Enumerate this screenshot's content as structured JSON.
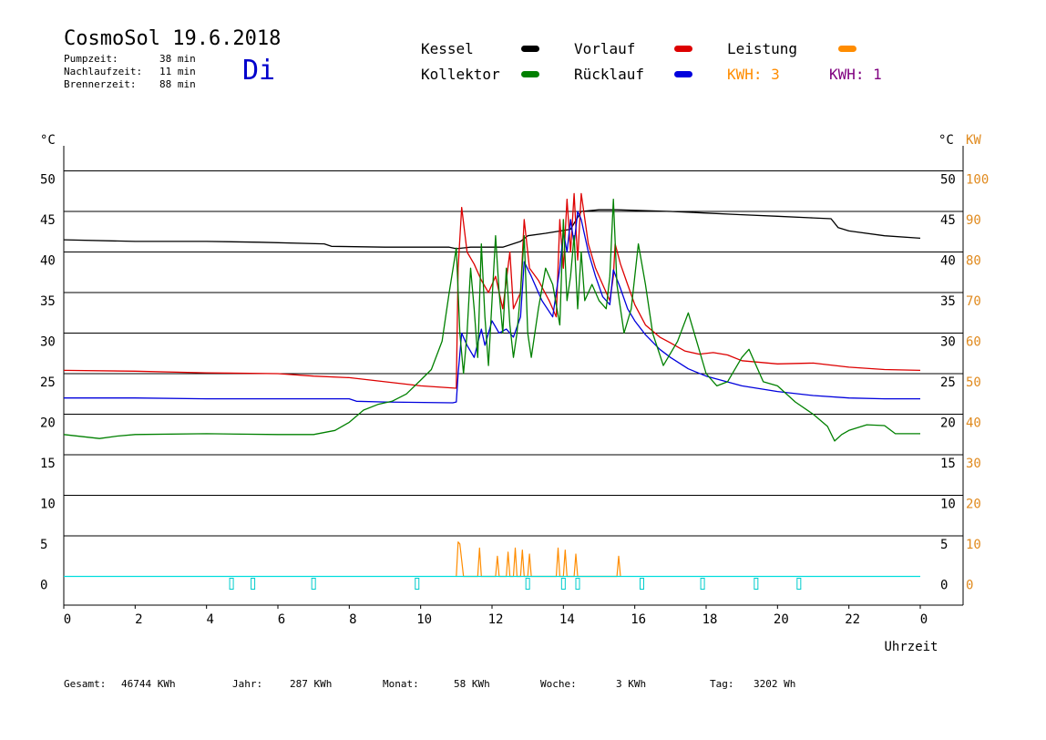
{
  "header": {
    "title": "CosmoSol 19.6.2018",
    "day": "Di",
    "info": [
      {
        "label": "Pumpzeit:",
        "value": "38 min"
      },
      {
        "label": "Nachlaufzeit:",
        "value": "11 min"
      },
      {
        "label": "Brennerzeit:",
        "value": "88 min"
      }
    ]
  },
  "legend": {
    "kessel": {
      "label": "Kessel",
      "color": "#000000"
    },
    "kollektor": {
      "label": "Kollektor",
      "color": "#008000"
    },
    "vorlauf": {
      "label": "Vorlauf",
      "color": "#dd0000"
    },
    "ruecklauf": {
      "label": "Rücklauf",
      "color": "#0000dd"
    },
    "leistung": {
      "label": "Leistung",
      "color": "#ff8c00"
    },
    "kwh1": {
      "label": "KWH: 3",
      "color": "#ff8c00"
    },
    "kwh2": {
      "label": "KWH: 1",
      "color": "#800080"
    }
  },
  "footer": {
    "gesamt_label": "Gesamt:",
    "gesamt_value": "46744 KWh",
    "jahr_label": "Jahr:",
    "jahr_value": "287 KWh",
    "monat_label": "Monat:",
    "monat_value": "58 KWh",
    "woche_label": "Woche:",
    "woche_value": "3 KWh",
    "tag_label": "Tag:",
    "tag_value": "3202 Wh"
  },
  "chart_data": {
    "type": "line",
    "left_unit": "°C",
    "right_unit_temp": "°C",
    "right_unit_power": "KW",
    "xlabel": "Uhrzeit",
    "x_ticks": [
      "0",
      "2",
      "4",
      "6",
      "8",
      "10",
      "12",
      "14",
      "16",
      "18",
      "20",
      "22",
      "0"
    ],
    "y_ticks": [
      0,
      5,
      10,
      15,
      20,
      25,
      30,
      35,
      40,
      45,
      50
    ],
    "y_right_kw_ticks": [
      0,
      10,
      20,
      30,
      40,
      50,
      60,
      70,
      80,
      90,
      100
    ],
    "xlim": [
      0,
      24
    ],
    "ylim": [
      -3.5,
      50
    ],
    "grid": true,
    "series": [
      {
        "name": "Kessel",
        "color": "#000000",
        "points": [
          [
            0,
            41.5
          ],
          [
            2,
            41.3
          ],
          [
            4,
            41.3
          ],
          [
            5.5,
            41.2
          ],
          [
            7.3,
            41
          ],
          [
            7.5,
            40.7
          ],
          [
            9,
            40.6
          ],
          [
            10.8,
            40.6
          ],
          [
            11,
            40.4
          ],
          [
            11.4,
            40.6
          ],
          [
            12.3,
            40.6
          ],
          [
            12.8,
            41.3
          ],
          [
            13,
            42
          ],
          [
            13.5,
            42.3
          ],
          [
            14.2,
            42.8
          ],
          [
            14.5,
            45
          ],
          [
            15,
            45.2
          ],
          [
            15.5,
            45.2
          ],
          [
            17,
            45
          ],
          [
            18,
            44.8
          ],
          [
            19,
            44.6
          ],
          [
            20,
            44.4
          ],
          [
            21,
            44.2
          ],
          [
            21.5,
            44.1
          ],
          [
            21.7,
            43
          ],
          [
            22,
            42.6
          ],
          [
            23,
            42
          ],
          [
            24,
            41.7
          ]
        ]
      },
      {
        "name": "Vorlauf",
        "color": "#dd0000",
        "points": [
          [
            0,
            25.4
          ],
          [
            2,
            25.3
          ],
          [
            4,
            25.1
          ],
          [
            6,
            25
          ],
          [
            7,
            24.7
          ],
          [
            8,
            24.5
          ],
          [
            9,
            24
          ],
          [
            10,
            23.5
          ],
          [
            11,
            23.2
          ],
          [
            11.05,
            38
          ],
          [
            11.15,
            45.5
          ],
          [
            11.3,
            40
          ],
          [
            11.5,
            38.5
          ],
          [
            11.7,
            36.5
          ],
          [
            11.9,
            35
          ],
          [
            12.1,
            37
          ],
          [
            12.3,
            33
          ],
          [
            12.5,
            40
          ],
          [
            12.6,
            33
          ],
          [
            12.8,
            35
          ],
          [
            12.9,
            44
          ],
          [
            13.05,
            38
          ],
          [
            13.3,
            36.5
          ],
          [
            13.6,
            34
          ],
          [
            13.8,
            32
          ],
          [
            13.9,
            44
          ],
          [
            14.0,
            38
          ],
          [
            14.1,
            46.5
          ],
          [
            14.2,
            40
          ],
          [
            14.3,
            47.2
          ],
          [
            14.4,
            39
          ],
          [
            14.5,
            47.2
          ],
          [
            14.7,
            41
          ],
          [
            14.9,
            38
          ],
          [
            15.1,
            36
          ],
          [
            15.3,
            34
          ],
          [
            15.4,
            37
          ],
          [
            15.45,
            41
          ],
          [
            15.6,
            38.5
          ],
          [
            15.8,
            36
          ],
          [
            16,
            33.5
          ],
          [
            16.3,
            31
          ],
          [
            16.7,
            29.5
          ],
          [
            17,
            28.8
          ],
          [
            17.4,
            27.8
          ],
          [
            17.8,
            27.4
          ],
          [
            18.2,
            27.6
          ],
          [
            18.6,
            27.3
          ],
          [
            19,
            26.6
          ],
          [
            20,
            26.2
          ],
          [
            21,
            26.3
          ],
          [
            22,
            25.8
          ],
          [
            23,
            25.5
          ],
          [
            24,
            25.4
          ]
        ]
      },
      {
        "name": "Rücklauf",
        "color": "#0000dd",
        "points": [
          [
            0,
            22
          ],
          [
            2,
            22
          ],
          [
            4,
            21.9
          ],
          [
            6,
            21.9
          ],
          [
            8,
            21.9
          ],
          [
            8.2,
            21.6
          ],
          [
            9,
            21.5
          ],
          [
            10.9,
            21.4
          ],
          [
            11.0,
            21.5
          ],
          [
            11.05,
            25
          ],
          [
            11.15,
            30
          ],
          [
            11.3,
            28.5
          ],
          [
            11.5,
            27
          ],
          [
            11.7,
            30.5
          ],
          [
            11.8,
            28.5
          ],
          [
            12.0,
            31.5
          ],
          [
            12.2,
            30
          ],
          [
            12.4,
            30.5
          ],
          [
            12.6,
            29.5
          ],
          [
            12.8,
            32
          ],
          [
            12.9,
            38.8
          ],
          [
            13.1,
            37
          ],
          [
            13.4,
            34
          ],
          [
            13.7,
            32
          ],
          [
            13.9,
            38
          ],
          [
            14.0,
            42.5
          ],
          [
            14.1,
            40
          ],
          [
            14.2,
            44
          ],
          [
            14.3,
            41
          ],
          [
            14.4,
            45
          ],
          [
            14.5,
            44
          ],
          [
            14.7,
            40
          ],
          [
            14.9,
            37
          ],
          [
            15.1,
            34.5
          ],
          [
            15.3,
            33.5
          ],
          [
            15.4,
            37.8
          ],
          [
            15.6,
            35.5
          ],
          [
            15.8,
            33
          ],
          [
            16,
            31.5
          ],
          [
            16.3,
            29.8
          ],
          [
            16.7,
            28
          ],
          [
            17,
            27
          ],
          [
            17.5,
            25.6
          ],
          [
            18,
            24.7
          ],
          [
            19,
            23.5
          ],
          [
            20,
            22.8
          ],
          [
            21,
            22.3
          ],
          [
            22,
            22
          ],
          [
            23,
            21.9
          ],
          [
            24,
            21.9
          ]
        ]
      },
      {
        "name": "Kollektor",
        "color": "#008000",
        "points": [
          [
            0,
            17.5
          ],
          [
            1,
            17
          ],
          [
            1.5,
            17.3
          ],
          [
            2,
            17.5
          ],
          [
            4,
            17.6
          ],
          [
            6,
            17.5
          ],
          [
            7,
            17.5
          ],
          [
            7.6,
            18
          ],
          [
            8,
            19
          ],
          [
            8.4,
            20.5
          ],
          [
            8.8,
            21.2
          ],
          [
            9.2,
            21.6
          ],
          [
            9.6,
            22.5
          ],
          [
            10,
            24.2
          ],
          [
            10.3,
            25.5
          ],
          [
            10.6,
            29
          ],
          [
            10.8,
            35
          ],
          [
            11.0,
            40.5
          ],
          [
            11.1,
            30
          ],
          [
            11.2,
            25
          ],
          [
            11.3,
            30
          ],
          [
            11.4,
            38
          ],
          [
            11.5,
            33
          ],
          [
            11.6,
            27
          ],
          [
            11.7,
            41
          ],
          [
            11.8,
            32
          ],
          [
            11.9,
            26
          ],
          [
            12.0,
            34
          ],
          [
            12.1,
            42
          ],
          [
            12.2,
            35
          ],
          [
            12.3,
            30
          ],
          [
            12.4,
            38
          ],
          [
            12.5,
            31
          ],
          [
            12.6,
            27
          ],
          [
            12.7,
            30
          ],
          [
            12.8,
            35
          ],
          [
            12.9,
            42
          ],
          [
            13.0,
            30
          ],
          [
            13.1,
            27
          ],
          [
            13.3,
            33
          ],
          [
            13.5,
            38
          ],
          [
            13.7,
            36
          ],
          [
            13.9,
            31
          ],
          [
            14.0,
            44
          ],
          [
            14.1,
            34
          ],
          [
            14.2,
            37
          ],
          [
            14.3,
            42
          ],
          [
            14.4,
            33
          ],
          [
            14.5,
            40
          ],
          [
            14.6,
            34
          ],
          [
            14.8,
            36
          ],
          [
            15.0,
            34
          ],
          [
            15.2,
            33
          ],
          [
            15.3,
            37
          ],
          [
            15.4,
            46.5
          ],
          [
            15.5,
            36
          ],
          [
            15.7,
            30
          ],
          [
            15.9,
            33
          ],
          [
            16.1,
            41
          ],
          [
            16.3,
            36
          ],
          [
            16.5,
            30
          ],
          [
            16.8,
            26
          ],
          [
            17.2,
            29
          ],
          [
            17.5,
            32.5
          ],
          [
            17.8,
            28
          ],
          [
            18.0,
            25
          ],
          [
            18.3,
            23.5
          ],
          [
            18.6,
            24
          ],
          [
            19.0,
            27
          ],
          [
            19.2,
            28
          ],
          [
            19.6,
            24
          ],
          [
            20,
            23.5
          ],
          [
            20.5,
            21.5
          ],
          [
            21,
            20
          ],
          [
            21.4,
            18.5
          ],
          [
            21.6,
            16.7
          ],
          [
            21.8,
            17.5
          ],
          [
            22,
            18
          ],
          [
            22.5,
            18.7
          ],
          [
            23,
            18.6
          ],
          [
            23.3,
            17.6
          ],
          [
            23.6,
            17.6
          ],
          [
            24,
            17.6
          ]
        ]
      },
      {
        "name": "Leistung",
        "color": "#ff8c00",
        "axis": "KW",
        "points": [
          [
            11.0,
            0
          ],
          [
            11.05,
            8.5
          ],
          [
            11.1,
            8
          ],
          [
            11.2,
            0
          ],
          [
            11.6,
            0
          ],
          [
            11.65,
            7
          ],
          [
            11.7,
            0
          ],
          [
            12.1,
            0
          ],
          [
            12.15,
            5
          ],
          [
            12.2,
            0
          ],
          [
            12.4,
            0
          ],
          [
            12.45,
            6
          ],
          [
            12.5,
            0
          ],
          [
            12.6,
            0
          ],
          [
            12.65,
            7
          ],
          [
            12.7,
            0
          ],
          [
            12.8,
            0
          ],
          [
            12.85,
            6.5
          ],
          [
            12.9,
            0
          ],
          [
            13.0,
            0
          ],
          [
            13.05,
            5.5
          ],
          [
            13.1,
            0
          ],
          [
            13.8,
            0
          ],
          [
            13.85,
            7
          ],
          [
            13.9,
            0
          ],
          [
            14.0,
            0
          ],
          [
            14.05,
            6.5
          ],
          [
            14.1,
            0
          ],
          [
            14.3,
            0
          ],
          [
            14.35,
            5.5
          ],
          [
            14.4,
            0
          ],
          [
            15.5,
            0
          ],
          [
            15.55,
            5
          ],
          [
            15.6,
            0
          ]
        ]
      },
      {
        "name": "Pumpe",
        "color": "#00dddd",
        "points": [
          [
            0,
            0
          ],
          [
            24,
            0
          ]
        ]
      }
    ]
  }
}
